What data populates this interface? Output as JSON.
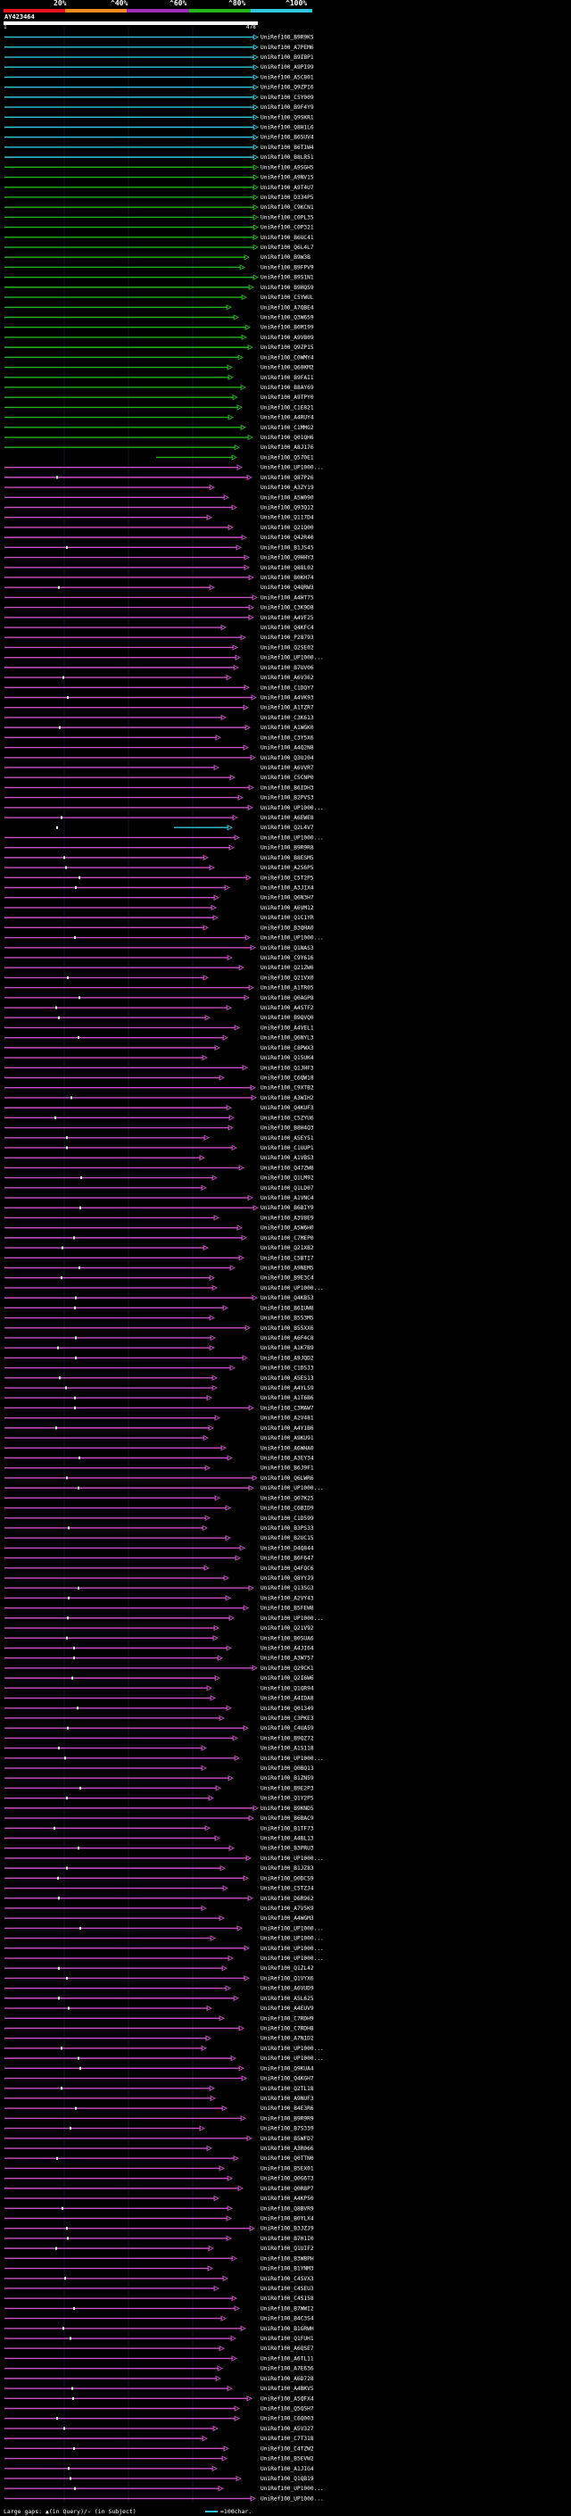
{
  "legend": {
    "labels": [
      "20%",
      "^40%",
      "^60%",
      "^80%",
      "^100%"
    ],
    "colors": [
      "#e8121e",
      "#f08a1e",
      "#9b2fb5",
      "#24b41c",
      "#2fc7d9"
    ]
  },
  "query": {
    "id": "AY423464",
    "start": "1",
    "end": "478"
  },
  "colors": {
    "cyan": "#2fc7d9",
    "green": "#24b41c",
    "magenta": "#c74fc0",
    "purple": "#9b2fb5",
    "white": "#ffffff"
  },
  "hits": {
    "cyan_labels": [
      "UniRef100_B9R9K5",
      "UniRef100_A7PEM6",
      "UniRef100_B9IBP1",
      "UniRef100_A9PI99",
      "UniRef100_A5C801",
      "UniRef100_Q9ZPI6",
      "UniRef100_C5Y009",
      "UniRef100_B9F4Y9",
      "UniRef100_Q9SKR1",
      "UniRef100_Q8H1L6",
      "UniRef100_B6SUV4",
      "UniRef100_B6T1W4",
      "UniRef100_B8LR51"
    ],
    "green_labels": [
      "UniRef100_A9SGH5",
      "UniRef100_A9NV15",
      "UniRef100_A9T4U7",
      "UniRef100_D334P5",
      "UniRef100_C9KCN1",
      "UniRef100_C0PL35",
      "UniRef100_C0P321",
      "UniRef100_B6UC41",
      "UniRef100_Q6L4L7",
      "UniRef100_B9W3B",
      "UniRef100_B9FPV9",
      "UniRef100_B9S1N1",
      "UniRef100_B9HQS9",
      "UniRef100_C5YWUL",
      "UniRef100_A7QBE4",
      "UniRef100_Q3W659",
      "UniRef100_B0M199",
      "UniRef100_A9VB09",
      "UniRef100_Q9ZP15",
      "UniRef100_C0WMY4",
      "UniRef100_Q60KM2",
      "UniRef100_B9FAI1",
      "UniRef100_B8AY69",
      "UniRef100_A9TPY0",
      "UniRef100_C1E821",
      "UniRef100_A4RUY4",
      "UniRef100_C1MMG2",
      "UniRef100_Q01QH6",
      "UniRef100_A8J176",
      "UniRef100_Q570E1"
    ],
    "magenta_labels": [
      "UniRef100_UP1000...",
      "UniRef100_Q87P26",
      "UniRef100_A3ZY19",
      "UniRef100_A5W090",
      "UniRef100_Q93Q12",
      "UniRef100_Q117D4",
      "UniRef100_Q21Q00",
      "UniRef100_Q42R40",
      "UniRef100_B1JS45",
      "UniRef100_Q9HHY3",
      "UniRef100_Q88L02",
      "UniRef100_B0KH74",
      "UniRef100_Q4QRW3",
      "UniRef100_A4HT75",
      "UniRef100_C3K9D8",
      "UniRef100_A4VF25",
      "UniRef100_Q4KFC4",
      "UniRef100_P28793",
      "UniRef100_Q2SE02",
      "UniRef100_UP1000...",
      "UniRef100_B7UV06",
      "UniRef100_A6V362",
      "UniRef100_C1DQY7",
      "UniRef100_A4VK93",
      "UniRef100_A1TZR7",
      "UniRef100_C3K613",
      "UniRef100_A1WGK0",
      "UniRef100_C3Y5X6",
      "UniRef100_A4Q2N8",
      "UniRef100_Q3UJ04",
      "UniRef100_A6VVR7",
      "UniRef100_C5CNP0",
      "UniRef100_B6IDH3",
      "UniRef100_B2PVS3",
      "UniRef100_UP1000...",
      "UniRef100_A6EWE8",
      "UniRef100_Q2L4V7",
      "UniRef100_UP1000...",
      "UniRef100_B9R9R8",
      "UniRef100_B8ESM5",
      "UniRef100_A2S6P5",
      "UniRef100_C5T2P5",
      "UniRef100_A3JIX4",
      "UniRef100_Q6N3H7",
      "UniRef100_A6VM12",
      "UniRef100_Q1C1YR",
      "UniRef100_B3QHA0",
      "UniRef100_UP1000...",
      "UniRef100_Q1NAS3",
      "UniRef100_C9Y616",
      "UniRef100_Q21ZW6",
      "UniRef100_Q21VX0",
      "UniRef100_A1TR05",
      "UniRef100_Q0AGP8",
      "UniRef100_A4STF2",
      "UniRef100_B9QVQ0",
      "UniRef100_A4VEL1",
      "UniRef100_Q6NYL3",
      "UniRef100_C8PWX3",
      "UniRef100_Q15UK4",
      "UniRef100_Q1JHF3",
      "UniRef100_C6QW18",
      "UniRef100_C9XTB2",
      "UniRef100_A3WIH2",
      "UniRef100_Q4KUF3",
      "UniRef100_C5ZYU6",
      "UniRef100_B8H4Q3",
      "UniRef100_A5EY51",
      "UniRef100_C1UUP1",
      "UniRef100_A1VBS3",
      "UniRef100_Q47ZW8",
      "UniRef100_Q1LM92",
      "UniRef100_Q1LD07",
      "UniRef100_A1VNC4",
      "UniRef100_B6BIY9",
      "UniRef100_A3V8E9",
      "UniRef100_A5W6H0",
      "UniRef100_C7MEP0",
      "UniRef100_Q21XB2",
      "UniRef100_C5BTI7",
      "UniRef100_A9NEM5",
      "UniRef100_B9E3C4",
      "UniRef100_UP1000...",
      "UniRef100_Q4KB53",
      "UniRef100_B6IUW8",
      "UniRef100_B5S3M5",
      "UniRef100_B5SXX6",
      "UniRef100_A6F4C8",
      "UniRef100_A1K7B9",
      "UniRef100_A9JQD2",
      "UniRef100_C1DSJ3",
      "UniRef100_A5ES13",
      "UniRef100_A4YLS9",
      "UniRef100_A1T6B6",
      "UniRef100_C3MAW7",
      "UniRef100_A2V481",
      "UniRef100_A4Y1B6",
      "UniRef100_A9KU91",
      "UniRef100_A6WHA0",
      "UniRef100_A3EY34",
      "UniRef100_B6J9F1",
      "UniRef100_Q6LWR6",
      "UniRef100_UP1000...",
      "UniRef100_Q07K25",
      "UniRef100_C6BID9",
      "UniRef100_C1D599",
      "UniRef100_B3PS33",
      "UniRef100_B2UC15",
      "UniRef100_D4Q844",
      "UniRef100_B6F647",
      "UniRef100_Q4FQC6",
      "UniRef100_Q8YYJ9",
      "UniRef100_Q13SG3",
      "UniRef100_A2VY43",
      "UniRef100_B5FEW8",
      "UniRef100_UP1000...",
      "UniRef100_Q21V92",
      "UniRef100_B0SUA6",
      "UniRef100_A4JI64",
      "UniRef100_A3W757",
      "UniRef100_Q29CK1",
      "UniRef100_Q2I6W6",
      "UniRef100_Q1QR94",
      "UniRef100_A4IDA8",
      "UniRef100_Q01349",
      "UniRef100_C3PKE3",
      "UniRef100_C4UA59",
      "UniRef100_B9QZ72",
      "UniRef100_A1S118",
      "UniRef100_UP1000...",
      "UniRef100_Q0BQ13",
      "UniRef100_B1ZN59",
      "UniRef100_B9E2P3",
      "UniRef100_Q1Y2P5",
      "UniRef100_B9KND5",
      "UniRef100_B6BAC9",
      "UniRef100_B1TF73",
      "UniRef100_A4BL13",
      "UniRef100_B3PRU3",
      "UniRef100_UP1000...",
      "UniRef100_B1JZ83",
      "UniRef100_D0DCS9",
      "UniRef100_C5TZJ4",
      "UniRef100_D6R962",
      "UniRef100_A7V5K9",
      "UniRef100_A4WGM3",
      "UniRef100_UP1000...",
      "UniRef100_UP1000...",
      "UniRef100_UP1000...",
      "UniRef100_UP1000...",
      "UniRef100_Q1ZL42",
      "UniRef100_Q1VYX6",
      "UniRef100_A6VUD9",
      "UniRef100_A5L625",
      "UniRef100_A4EUV9",
      "UniRef100_C7RDH9",
      "UniRef100_C7RDH8",
      "UniRef100_A7N1D2",
      "UniRef100_UP1000...",
      "UniRef100_UP1000...",
      "UniRef100_Q9KUA4",
      "UniRef100_Q4KGH7",
      "UniRef100_Q2TL18",
      "UniRef100_A9NUF3",
      "UniRef100_B4E3R6",
      "UniRef100_B9R9R9",
      "UniRef100_B7S339",
      "UniRef100_B5WFD7",
      "UniRef100_A3R066",
      "UniRef100_Q0TTN0",
      "UniRef100_B5EX01",
      "UniRef100_Q0G6T3",
      "UniRef100_Q0R8P7",
      "UniRef100_A4KP50",
      "UniRef100_Q8BVR9",
      "UniRef100_B0YLX4",
      "UniRef100_B3JZJ9",
      "UniRef100_B7H1I0",
      "UniRef100_Q1UIF2",
      "UniRef100_B3WBPH",
      "UniRef100_B1YNM3",
      "UniRef100_C4SVX3",
      "UniRef100_C4SEU3",
      "UniRef100_C4S158",
      "UniRef100_B7WWI2",
      "UniRef100_B4C3S4",
      "UniRef100_B1GRWH",
      "UniRef100_Q1FUH1",
      "UniRef100_A6QSE7",
      "UniRef100_A6TL11",
      "UniRef100_A7E636",
      "UniRef100_A6D728",
      "UniRef100_A4BKV5",
      "UniRef100_A5QFX4",
      "UniRef100_Q5QSH7",
      "UniRef100_C6Q003",
      "UniRef100_A5V327",
      "UniRef100_C7T318",
      "UniRef100_C4TZW2",
      "UniRef100_B5EVW2",
      "UniRef100_A1JIG4",
      "UniRef100_Q1QB19",
      "UniRef100_UP1000...",
      "UniRef100_UP1000..."
    ]
  },
  "footer": {
    "gaps_text": "Large gaps: ▲(in Query)/- (in Subject)",
    "scale_text": "=100char."
  }
}
